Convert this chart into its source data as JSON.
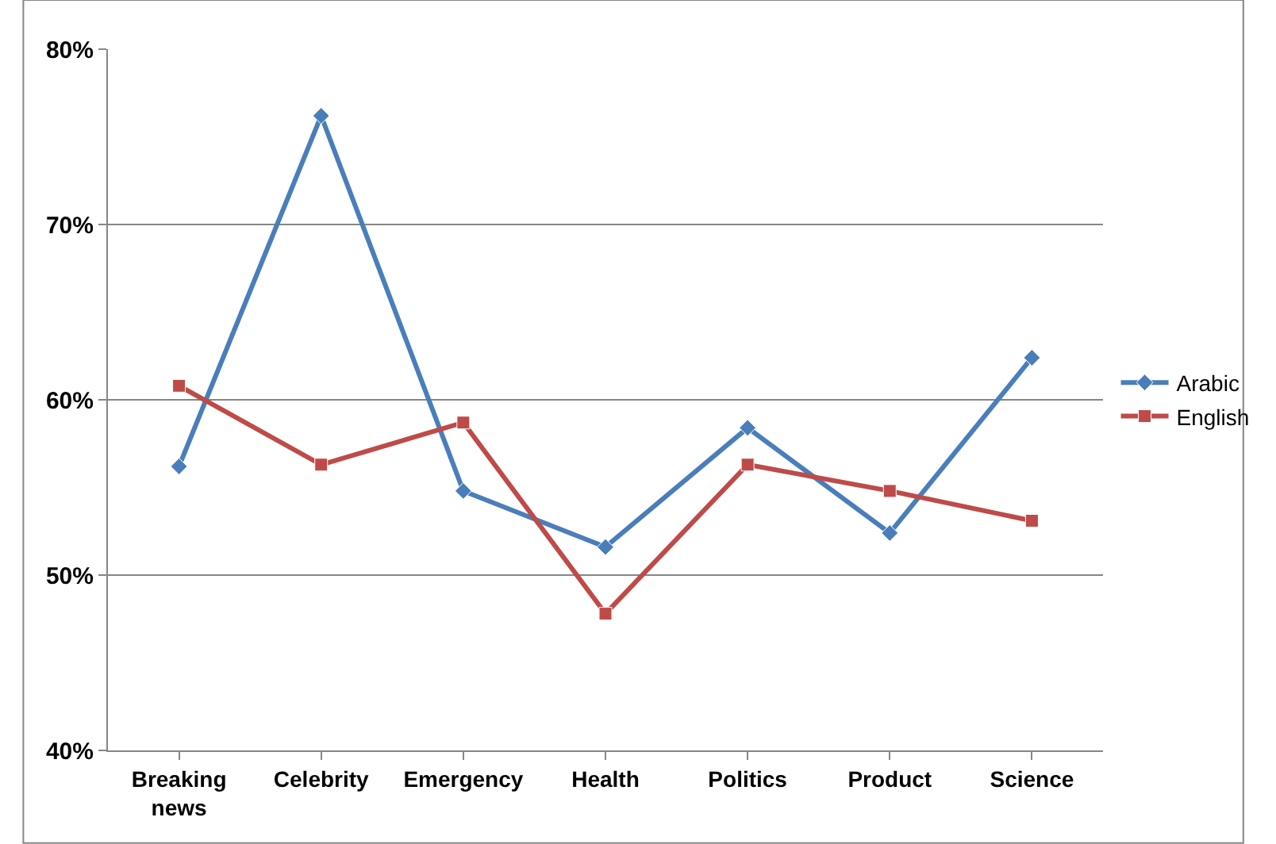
{
  "chart_data": {
    "type": "line",
    "categories": [
      "Breaking news",
      "Celebrity",
      "Emergency",
      "Health",
      "Politics",
      "Product",
      "Science"
    ],
    "series": [
      {
        "name": "Arabic",
        "color": "#4a7ebb",
        "marker": "diamond",
        "values": [
          56.2,
          76.2,
          54.8,
          51.6,
          58.4,
          52.4,
          62.4
        ]
      },
      {
        "name": "English",
        "color": "#be4b48",
        "marker": "square",
        "values": [
          60.8,
          56.3,
          58.7,
          47.8,
          56.3,
          54.8,
          53.1
        ]
      }
    ],
    "ylim": [
      40,
      80
    ],
    "yticks": [
      {
        "value": 40,
        "label": "40%"
      },
      {
        "value": 50,
        "label": "50%"
      },
      {
        "value": 60,
        "label": "60%"
      },
      {
        "value": 70,
        "label": "70%"
      },
      {
        "value": 80,
        "label": "80%"
      }
    ],
    "grid": "y",
    "legend": "right"
  }
}
